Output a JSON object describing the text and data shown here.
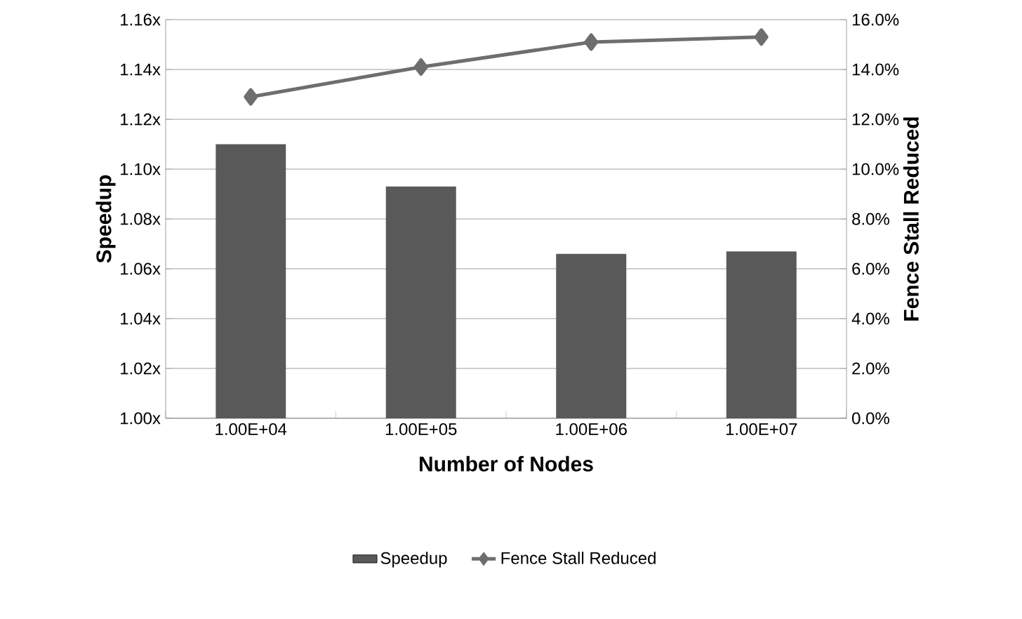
{
  "chart_data": {
    "type": "bar",
    "xlabel": "Number of Nodes",
    "ylabel": "Speedup",
    "y2label": "Fence Stall Reduced",
    "categories": [
      "1.00E+04",
      "1.00E+05",
      "1.00E+06",
      "1.00E+07"
    ],
    "series": [
      {
        "name": "Speedup",
        "color": "#595959",
        "values": [
          1.11,
          1.093,
          1.066,
          1.067
        ]
      },
      {
        "name": "Fence Stall Reduced",
        "type": "line",
        "axis": "y2",
        "color": "#6e6e6e",
        "values": [
          12.9,
          14.1,
          15.1,
          15.3
        ]
      }
    ],
    "ylim": [
      1.0,
      1.16
    ],
    "yticks": [
      {
        "value": 1.0,
        "label": "1.00x"
      },
      {
        "value": 1.02,
        "label": "1.02x"
      },
      {
        "value": 1.04,
        "label": "1.04x"
      },
      {
        "value": 1.06,
        "label": "1.06x"
      },
      {
        "value": 1.08,
        "label": "1.08x"
      },
      {
        "value": 1.1,
        "label": "1.10x"
      },
      {
        "value": 1.12,
        "label": "1.12x"
      },
      {
        "value": 1.14,
        "label": "1.14x"
      },
      {
        "value": 1.16,
        "label": "1.16x"
      }
    ],
    "y2lim": [
      0,
      16
    ],
    "y2ticks": [
      {
        "value": 0,
        "label": "0.0%"
      },
      {
        "value": 2,
        "label": "2.0%"
      },
      {
        "value": 4,
        "label": "4.0%"
      },
      {
        "value": 6,
        "label": "6.0%"
      },
      {
        "value": 8,
        "label": "8.0%"
      },
      {
        "value": 10,
        "label": "10.0%"
      },
      {
        "value": 12,
        "label": "12.0%"
      },
      {
        "value": 14,
        "label": "14.0%"
      },
      {
        "value": 16,
        "label": "16.0%"
      }
    ],
    "grid": "y",
    "legend": "bottom",
    "marker": "diamond",
    "line_style": "solid"
  }
}
